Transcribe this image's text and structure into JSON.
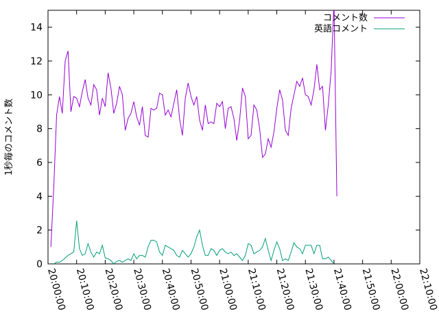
{
  "chart_data": {
    "type": "line",
    "title": "",
    "xlabel": "",
    "ylabel": "1秒毎のコメント数",
    "xlim_minutes": [
      0,
      130
    ],
    "ylim": [
      0,
      15
    ],
    "x_ticks": [
      "20:00:00",
      "20:10:00",
      "20:20:00",
      "20:30:00",
      "20:40:00",
      "20:50:00",
      "21:00:00",
      "21:10:00",
      "21:20:00",
      "21:30:00",
      "21:40:00",
      "21:50:00",
      "22:00:00",
      "22:10:00"
    ],
    "y_ticks": [
      "0",
      "2",
      "4",
      "6",
      "8",
      "10",
      "12",
      "14"
    ],
    "grid": false,
    "legend_position": "top-right",
    "series": [
      {
        "name": "コメント数",
        "color": "#9400d3",
        "points": [
          [
            1,
            1
          ],
          [
            2,
            4.5
          ],
          [
            3,
            8.8
          ],
          [
            4,
            9.9
          ],
          [
            5,
            8.9
          ],
          [
            6,
            12
          ],
          [
            7,
            12.6
          ],
          [
            8,
            9
          ],
          [
            9,
            9.9
          ],
          [
            10,
            9.8
          ],
          [
            11,
            9.3
          ],
          [
            12,
            10.2
          ],
          [
            13,
            10.9
          ],
          [
            14,
            9.8
          ],
          [
            15,
            9.4
          ],
          [
            16,
            10.6
          ],
          [
            17,
            10.3
          ],
          [
            18,
            8.8
          ],
          [
            19,
            9.8
          ],
          [
            20,
            9.3
          ],
          [
            21,
            11.3
          ],
          [
            22,
            10.4
          ],
          [
            23,
            8.9
          ],
          [
            24,
            9.5
          ],
          [
            25,
            10.5
          ],
          [
            26,
            10
          ],
          [
            27,
            7.9
          ],
          [
            28,
            8.6
          ],
          [
            29,
            8.9
          ],
          [
            30,
            9.6
          ],
          [
            31,
            8.7
          ],
          [
            32,
            8.2
          ],
          [
            33,
            9.3
          ],
          [
            34,
            7.6
          ],
          [
            35,
            7.5
          ],
          [
            36,
            9.2
          ],
          [
            37,
            9.1
          ],
          [
            38,
            9.2
          ],
          [
            39,
            10.1
          ],
          [
            40,
            10
          ],
          [
            41,
            8.8
          ],
          [
            42,
            9.1
          ],
          [
            43,
            8.7
          ],
          [
            44,
            9.5
          ],
          [
            45,
            10.3
          ],
          [
            46,
            8.6
          ],
          [
            47,
            7.6
          ],
          [
            48,
            9.8
          ],
          [
            49,
            10.7
          ],
          [
            50,
            9.9
          ],
          [
            51,
            9.4
          ],
          [
            52,
            9.9
          ],
          [
            53,
            8.5
          ],
          [
            54,
            7.9
          ],
          [
            55,
            9.4
          ],
          [
            56,
            8.3
          ],
          [
            57,
            8.4
          ],
          [
            58,
            8.3
          ],
          [
            59,
            9.5
          ],
          [
            60,
            9.3
          ],
          [
            61,
            9.6
          ],
          [
            62,
            8
          ],
          [
            63,
            9.2
          ],
          [
            64,
            9.3
          ],
          [
            65,
            8.6
          ],
          [
            66,
            7.3
          ],
          [
            67,
            8.5
          ],
          [
            68,
            10.4
          ],
          [
            69,
            9.9
          ],
          [
            70,
            7.4
          ],
          [
            71,
            7.6
          ],
          [
            72,
            9.4
          ],
          [
            73,
            9.1
          ],
          [
            74,
            8
          ],
          [
            75,
            6.3
          ],
          [
            76,
            6.5
          ],
          [
            77,
            7.4
          ],
          [
            78,
            6.9
          ],
          [
            79,
            7.8
          ],
          [
            80,
            9.2
          ],
          [
            81,
            10.3
          ],
          [
            82,
            9.7
          ],
          [
            83,
            7.9
          ],
          [
            84,
            7.6
          ],
          [
            85,
            9.2
          ],
          [
            86,
            10
          ],
          [
            87,
            10.8
          ],
          [
            88,
            10.5
          ],
          [
            89,
            11
          ],
          [
            90,
            10
          ],
          [
            91,
            9.9
          ],
          [
            92,
            9.4
          ],
          [
            93,
            10.3
          ],
          [
            94,
            11.8
          ],
          [
            95,
            10.3
          ],
          [
            96,
            10.5
          ],
          [
            97,
            7.9
          ],
          [
            98,
            9.4
          ],
          [
            99,
            11.4
          ],
          [
            100,
            15.5
          ],
          [
            101,
            4
          ]
        ]
      },
      {
        "name": "英語コメント",
        "color": "#009e73",
        "points": [
          [
            2,
            0
          ],
          [
            3,
            0.1
          ],
          [
            4,
            0.1
          ],
          [
            5,
            0.2
          ],
          [
            6,
            0.35
          ],
          [
            7,
            0.5
          ],
          [
            8,
            0.6
          ],
          [
            9,
            0.7
          ],
          [
            10,
            2.55
          ],
          [
            11,
            0.9
          ],
          [
            12,
            0.5
          ],
          [
            13,
            0.6
          ],
          [
            14,
            1.2
          ],
          [
            15,
            0.7
          ],
          [
            16,
            0.4
          ],
          [
            17,
            0.7
          ],
          [
            18,
            0.6
          ],
          [
            19,
            1.1
          ],
          [
            20,
            0.35
          ],
          [
            21,
            0.3
          ],
          [
            22,
            0.2
          ],
          [
            23,
            0
          ],
          [
            24,
            0.15
          ],
          [
            25,
            0.2
          ],
          [
            26,
            0.1
          ],
          [
            27,
            0.2
          ],
          [
            28,
            0.3
          ],
          [
            29,
            0.2
          ],
          [
            30,
            0.6
          ],
          [
            31,
            0.3
          ],
          [
            32,
            0.5
          ],
          [
            33,
            0.5
          ],
          [
            34,
            0.4
          ],
          [
            35,
            1
          ],
          [
            36,
            1.4
          ],
          [
            37,
            1.4
          ],
          [
            38,
            1.3
          ],
          [
            39,
            0.7
          ],
          [
            40,
            0.5
          ],
          [
            41,
            1.1
          ],
          [
            42,
            1
          ],
          [
            43,
            0.9
          ],
          [
            44,
            0.8
          ],
          [
            45,
            0.5
          ],
          [
            46,
            0.4
          ],
          [
            47,
            0.8
          ],
          [
            48,
            0.6
          ],
          [
            49,
            0.4
          ],
          [
            50,
            0.6
          ],
          [
            51,
            1
          ],
          [
            52,
            1.6
          ],
          [
            53,
            2
          ],
          [
            54,
            1.1
          ],
          [
            55,
            0.5
          ],
          [
            56,
            0.5
          ],
          [
            57,
            0.9
          ],
          [
            58,
            0.8
          ],
          [
            59,
            0.5
          ],
          [
            60,
            0.8
          ],
          [
            61,
            0.9
          ],
          [
            62,
            0.7
          ],
          [
            63,
            0.6
          ],
          [
            64,
            0.7
          ],
          [
            65,
            0.5
          ],
          [
            66,
            0.6
          ],
          [
            67,
            0.4
          ],
          [
            68,
            0.2
          ],
          [
            69,
            0.5
          ],
          [
            70,
            1.2
          ],
          [
            71,
            1.1
          ],
          [
            72,
            0.6
          ],
          [
            73,
            0.7
          ],
          [
            74,
            0.8
          ],
          [
            75,
            1
          ],
          [
            76,
            1.5
          ],
          [
            77,
            0.8
          ],
          [
            78,
            0.2
          ],
          [
            79,
            0.8
          ],
          [
            80,
            1.3
          ],
          [
            81,
            0.9
          ],
          [
            82,
            0.2
          ],
          [
            83,
            0.3
          ],
          [
            84,
            0.2
          ],
          [
            85,
            0.7
          ],
          [
            86,
            1.25
          ],
          [
            87,
            1
          ],
          [
            88,
            0.9
          ],
          [
            89,
            0.6
          ],
          [
            90,
            1.1
          ],
          [
            91,
            1.1
          ],
          [
            92,
            1.1
          ],
          [
            93,
            0.6
          ],
          [
            94,
            1.1
          ],
          [
            95,
            1.1
          ],
          [
            96,
            0.3
          ],
          [
            97,
            0.3
          ],
          [
            98,
            0.4
          ],
          [
            99,
            0.2
          ],
          [
            100,
            0
          ]
        ]
      }
    ]
  }
}
